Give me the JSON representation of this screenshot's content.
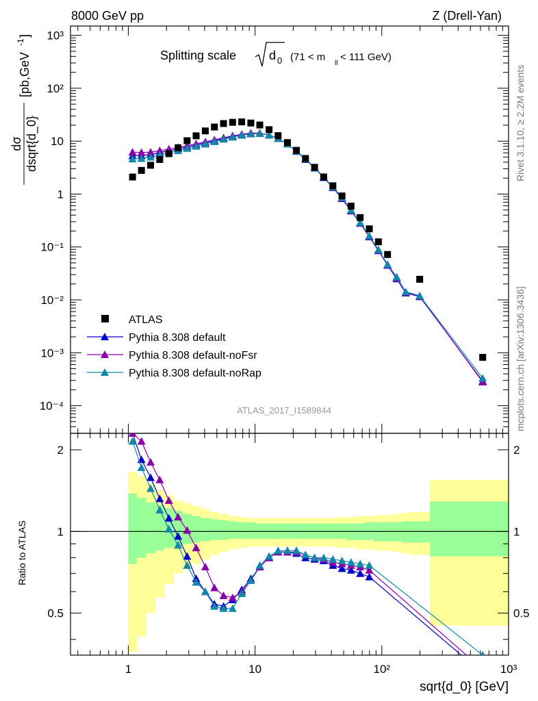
{
  "header": {
    "left": "8000 GeV pp",
    "right": "Z (Drell-Yan)"
  },
  "side_labels": {
    "rivet": "Rivet 3.1.10, ≥ 2.2M events",
    "source": "mcplots.cern.ch [arXiv:1306.3436]"
  },
  "analysis_id": "ATLAS_2017_I1589844",
  "chart_data": [
    {
      "type": "scatter",
      "panel": "main",
      "title": "Splitting scale √d₀ (71 < mₗₗ < 111 GeV)",
      "title_parts": {
        "main": "Splitting scale",
        "sym": "d",
        "sub": "0",
        "range": "(71 < m",
        "range_sub": "ll",
        "range_end": " < 111 GeV)"
      },
      "ylabel": "dσ/dsqrt{d_0} [pb,GeV⁻¹]",
      "ylabel_parts": {
        "num": "dσ",
        "den": "dsqrt{d_0}",
        "unit": "[pb,GeV",
        "unit_sup": "-1",
        "unit_end": "]"
      },
      "xscale": "log",
      "yscale": "log",
      "xlim": [
        0.35,
        1000
      ],
      "ylim": [
        3e-05,
        1500
      ],
      "legend_position": "bottom-left",
      "x": [
        1.08,
        1.27,
        1.5,
        1.77,
        2.09,
        2.47,
        2.91,
        3.43,
        4.05,
        4.78,
        5.64,
        6.65,
        7.85,
        9.26,
        10.9,
        12.9,
        15.2,
        18.0,
        21.2,
        25.0,
        29.5,
        34.8,
        41.1,
        48.5,
        57.2,
        67.5,
        79.7,
        94.0,
        111.0,
        131.0,
        154.5,
        199.0,
        625.0
      ],
      "series": [
        {
          "name": "ATLAS",
          "marker": "square",
          "color": "#000000",
          "values": [
            2.1,
            2.8,
            3.5,
            4.5,
            5.8,
            7.5,
            10.2,
            12.6,
            15.6,
            18.5,
            21.5,
            22.7,
            23.1,
            22.0,
            20.2,
            16.5,
            12.7,
            9.4,
            6.7,
            4.7,
            3.2,
            2.1,
            1.43,
            0.92,
            0.59,
            0.36,
            0.22,
            0.125,
            0.072,
            0.0245,
            0.00082
          ],
          "x_index": [
            0,
            1,
            2,
            3,
            4,
            5,
            6,
            7,
            8,
            9,
            10,
            11,
            12,
            13,
            14,
            15,
            16,
            17,
            18,
            19,
            20,
            21,
            22,
            23,
            24,
            25,
            26,
            27,
            28,
            31,
            32
          ]
        },
        {
          "name": "Pythia 8.308 default",
          "marker": "triangle",
          "color": "#0000cc",
          "values": [
            5.3,
            5.3,
            5.6,
            6.1,
            6.6,
            7.2,
            7.8,
            8.5,
            9.3,
            10.2,
            11.2,
            12.3,
            13.2,
            14.0,
            14.0,
            13.0,
            11.2,
            8.8,
            6.4,
            4.5,
            3.1,
            2.05,
            1.32,
            0.82,
            0.48,
            0.28,
            0.155,
            0.085,
            0.045,
            0.025,
            0.0135,
            0.0115,
            0.00029
          ]
        },
        {
          "name": "Pythia 8.308 default-noFsr",
          "marker": "triangle",
          "color": "#8800aa",
          "values": [
            6.2,
            6.1,
            6.2,
            6.6,
            7.1,
            7.6,
            8.2,
            8.9,
            9.7,
            10.6,
            11.6,
            12.6,
            13.5,
            14.2,
            14.2,
            13.1,
            11.3,
            8.9,
            6.5,
            4.6,
            3.15,
            2.1,
            1.34,
            0.84,
            0.49,
            0.285,
            0.158,
            0.087,
            0.046,
            0.026,
            0.0138,
            0.0118,
            0.00028
          ]
        },
        {
          "name": "Pythia 8.308 default-noRap",
          "marker": "triangle",
          "color": "#1188aa",
          "values": [
            4.6,
            4.7,
            5.0,
            5.5,
            6.0,
            6.6,
            7.3,
            8.0,
            8.8,
            9.8,
            10.9,
            11.9,
            12.9,
            13.7,
            13.9,
            13.0,
            11.2,
            8.8,
            6.5,
            4.6,
            3.15,
            2.1,
            1.36,
            0.86,
            0.5,
            0.29,
            0.162,
            0.089,
            0.047,
            0.027,
            0.0142,
            0.012,
            0.00033
          ]
        }
      ],
      "yticks": [
        "10⁻⁴",
        "10⁻³",
        "10⁻²",
        "10⁻¹",
        "1",
        "10",
        "10²",
        "10³"
      ]
    },
    {
      "type": "line",
      "panel": "ratio",
      "ylabel": "Ratio to ATLAS",
      "xlabel": "sqrt{d_0} [GeV]",
      "xscale": "log",
      "xlim": [
        0.35,
        1000
      ],
      "ylim": [
        0.35,
        2.3
      ],
      "xticks": [
        "1",
        "10",
        "10²",
        "10³"
      ],
      "yticks": [
        "0.5",
        "1",
        "2"
      ],
      "band_edges": [
        1.0,
        1.17,
        1.38,
        1.63,
        1.92,
        2.27,
        2.68,
        3.16,
        3.73,
        4.4,
        5.19,
        6.12,
        7.22,
        8.52,
        10.1,
        11.9,
        14.0,
        16.5,
        19.5,
        23.0,
        27.2,
        32.1,
        37.9,
        44.7,
        52.7,
        62.2,
        73.4,
        86.6,
        102,
        121,
        143,
        169,
        240,
        1000
      ],
      "band_yellow_up": [
        1.66,
        1.6,
        1.5,
        1.42,
        1.36,
        1.3,
        1.27,
        1.24,
        1.21,
        1.18,
        1.16,
        1.14,
        1.13,
        1.12,
        1.12,
        1.12,
        1.12,
        1.12,
        1.12,
        1.12,
        1.12,
        1.12,
        1.12,
        1.13,
        1.13,
        1.14,
        1.14,
        1.15,
        1.15,
        1.16,
        1.17,
        1.18,
        1.55
      ],
      "band_yellow_dn": [
        0.36,
        0.41,
        0.5,
        0.57,
        0.64,
        0.7,
        0.73,
        0.76,
        0.79,
        0.82,
        0.84,
        0.86,
        0.87,
        0.88,
        0.88,
        0.88,
        0.88,
        0.88,
        0.88,
        0.88,
        0.88,
        0.88,
        0.88,
        0.87,
        0.87,
        0.86,
        0.86,
        0.85,
        0.85,
        0.84,
        0.83,
        0.82,
        0.45
      ],
      "band_green_up": [
        1.38,
        1.33,
        1.28,
        1.25,
        1.22,
        1.19,
        1.16,
        1.14,
        1.12,
        1.11,
        1.1,
        1.09,
        1.08,
        1.08,
        1.07,
        1.07,
        1.07,
        1.07,
        1.07,
        1.07,
        1.07,
        1.07,
        1.07,
        1.07,
        1.07,
        1.07,
        1.08,
        1.08,
        1.08,
        1.08,
        1.09,
        1.09,
        1.29
      ],
      "band_green_dn": [
        0.76,
        0.8,
        0.83,
        0.85,
        0.87,
        0.88,
        0.9,
        0.91,
        0.92,
        0.93,
        0.93,
        0.94,
        0.94,
        0.94,
        0.94,
        0.94,
        0.94,
        0.94,
        0.94,
        0.94,
        0.94,
        0.94,
        0.94,
        0.94,
        0.93,
        0.93,
        0.93,
        0.92,
        0.92,
        0.92,
        0.91,
        0.91,
        0.81
      ],
      "x": [
        1.08,
        1.27,
        1.5,
        1.77,
        2.09,
        2.47,
        2.91,
        3.43,
        4.05,
        4.78,
        5.64,
        6.65,
        7.85,
        9.26,
        10.9,
        12.9,
        15.2,
        18.0,
        21.2,
        25.0,
        29.5,
        34.8,
        41.1,
        48.5,
        57.2,
        67.5,
        79.7,
        625.0
      ],
      "series": [
        {
          "name": "Pythia 8.308 default",
          "color": "#0000cc",
          "values": [
            2.3,
            1.84,
            1.58,
            1.32,
            1.12,
            0.96,
            0.81,
            0.67,
            0.6,
            0.54,
            0.53,
            0.56,
            0.61,
            0.67,
            0.74,
            0.8,
            0.84,
            0.84,
            0.83,
            0.8,
            0.79,
            0.78,
            0.75,
            0.73,
            0.72,
            0.7,
            0.68,
            0.3
          ]
        },
        {
          "name": "Pythia 8.308 default-noFsr",
          "color": "#8800aa",
          "values": [
            2.3,
            2.15,
            1.8,
            1.55,
            1.3,
            1.13,
            1.01,
            0.87,
            0.74,
            0.62,
            0.58,
            0.57,
            0.6,
            0.66,
            0.74,
            0.8,
            0.84,
            0.84,
            0.84,
            0.82,
            0.8,
            0.79,
            0.77,
            0.76,
            0.75,
            0.74,
            0.72,
            0.31
          ]
        },
        {
          "name": "Pythia 8.308 default-noRap",
          "color": "#1188aa",
          "values": [
            2.15,
            1.72,
            1.44,
            1.2,
            1.02,
            0.89,
            0.75,
            0.65,
            0.6,
            0.53,
            0.52,
            0.52,
            0.59,
            0.66,
            0.75,
            0.81,
            0.85,
            0.85,
            0.85,
            0.82,
            0.8,
            0.8,
            0.79,
            0.78,
            0.77,
            0.76,
            0.75,
            0.35
          ]
        }
      ],
      "reference_line": 1
    }
  ]
}
